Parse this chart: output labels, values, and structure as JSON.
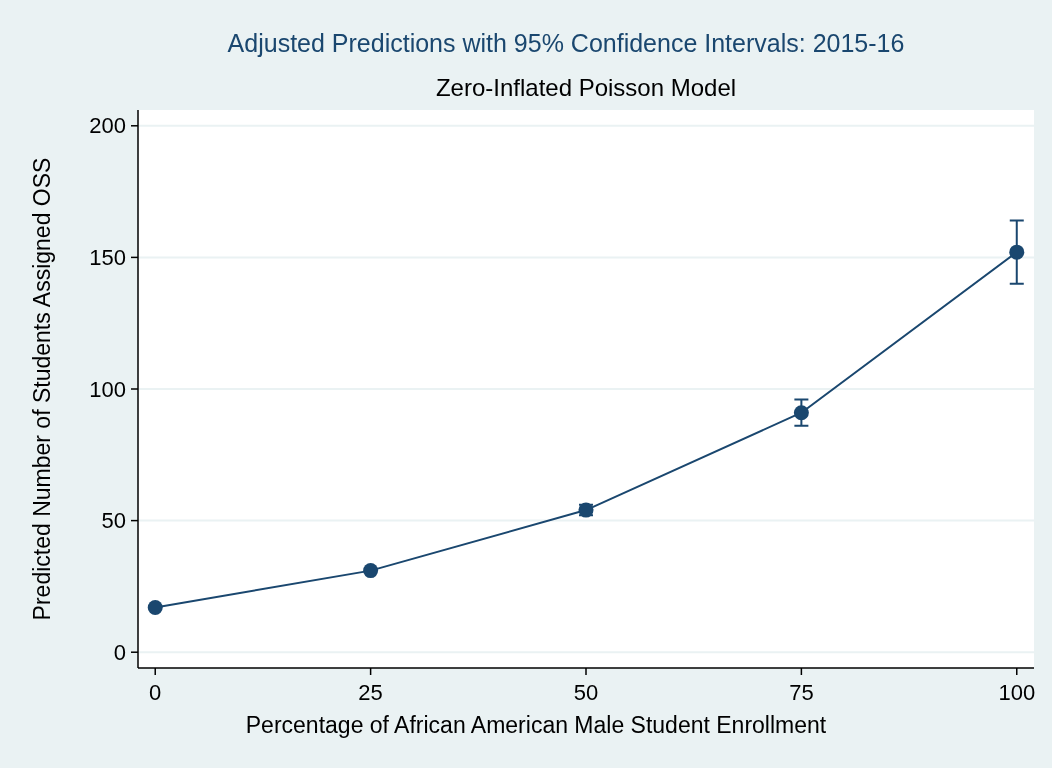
{
  "chart_data": {
    "type": "line",
    "title": "Adjusted Predictions with 95% Confidence Intervals:  2015-16",
    "subtitle": "Zero-Inflated Poisson Model",
    "xlabel": "Percentage of African American Male Student Enrollment",
    "ylabel": "Predicted Number of Students Assigned OSS",
    "x": [
      0,
      25,
      50,
      75,
      100
    ],
    "series": [
      {
        "color": "#1a476f",
        "values": [
          17,
          31,
          54,
          91,
          152
        ],
        "errors": [
          null,
          null,
          [
            52,
            56
          ],
          [
            86,
            96
          ],
          [
            140,
            164
          ]
        ]
      }
    ],
    "xlim": [
      -2,
      102
    ],
    "ylim": [
      -6,
      206
    ],
    "xticks": [
      0,
      25,
      50,
      75,
      100
    ],
    "yticks": [
      0,
      50,
      100,
      150,
      200
    ],
    "grid": "y",
    "marker": "circle",
    "line_style": "solid"
  }
}
